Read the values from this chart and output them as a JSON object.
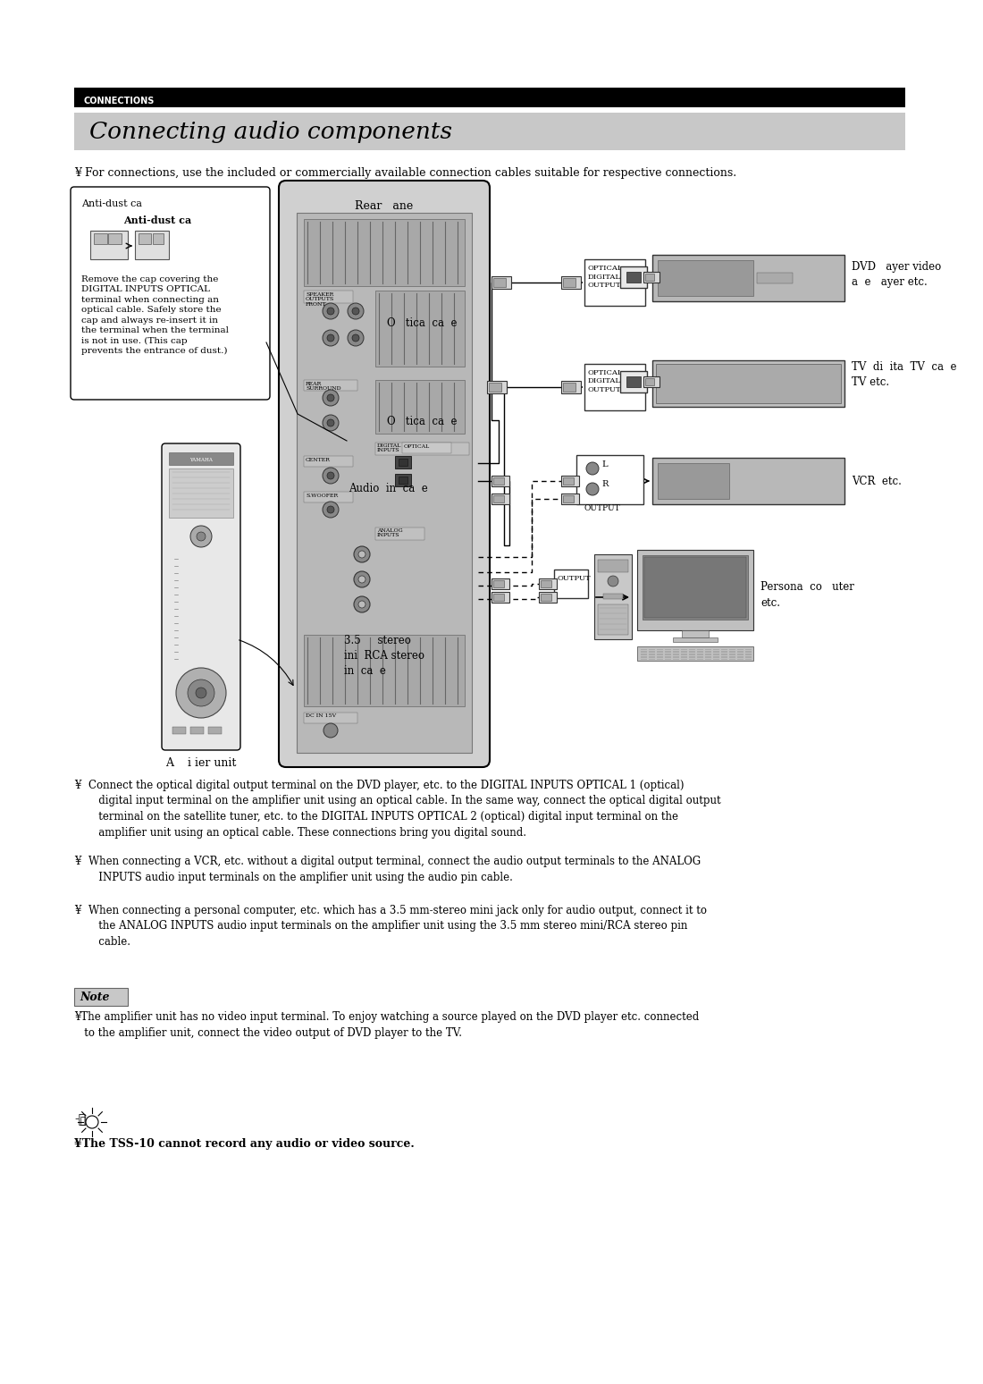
{
  "bg_color": "#ffffff",
  "header_bar_color": "#000000",
  "header_text": "CONNECTIONS",
  "title_bg_color": "#c8c8c8",
  "title_text": "Connecting audio components",
  "bullet": "¥",
  "intro_text": " For connections, use the included or commercially available connection cables suitable for respective connections.",
  "antidust_title": "Anti-dust ca",
  "antidust_subtitle": "Anti-dust ca",
  "rear_label": "Rear   ane",
  "optical_label1": "O   tica  ca  e",
  "optical_label2": "O   tica  ca  e",
  "audio_label": "Audio  in  ca  e",
  "stereo_label": "3.5     stereo\nini  RCA stereo\nin  ca  e",
  "dvd_label": "DVD   ayer video\na  e   ayer etc.",
  "tv_label": "TV  di  ita  TV  ca  e\nTV etc.",
  "vcr_label": "VCR  etc.",
  "pc_label": "Persona  co   uter\netc.",
  "amplifier_label": "A    i ier unit",
  "optical_tag": "OPTICAL\nDIGITAL\nOUTPUT",
  "output_tag": "OUTPUT",
  "lr_l": "L",
  "lr_r": "R",
  "desc_text": "Remove the cap covering the\nDIGITAL INPUTS OPTICAL\nterminal when connecting an\noptical cable. Safely store the\ncap and always re-insert it in\nthe terminal when the terminal\nis not in use. (This cap\nprevents the entrance of dust.)",
  "bp1": "Connect the optical digital output terminal on the DVD player, etc. to the DIGITAL INPUTS OPTICAL 1 (optical)\n   digital input terminal on the amplifier unit using an optical cable. In the same way, connect the optical digital output\n   terminal on the satellite tuner, etc. to the DIGITAL INPUTS OPTICAL 2 (optical) digital input terminal on the\n   amplifier unit using an optical cable. These connections bring you digital sound.",
  "bp2": "When connecting a VCR, etc. without a digital output terminal, connect the audio output terminals to the ANALOG\n   INPUTS audio input terminals on the amplifier unit using the audio pin cable.",
  "bp3": "When connecting a personal computer, etc. which has a 3.5 mm-stereo mini jack only for audio output, connect it to\n   the ANALOG INPUTS audio input terminals on the amplifier unit using the 3.5 mm stereo mini/RCA stereo pin\n   cable.",
  "note_label": "Note",
  "note_text": "¥The amplifier unit has no video input terminal. To enjoy watching a source played on the DVD player etc. connected\n   to the amplifier unit, connect the video output of DVD player to the TV.",
  "tip_text": "¥The TSS-10 cannot record any audio or video source."
}
